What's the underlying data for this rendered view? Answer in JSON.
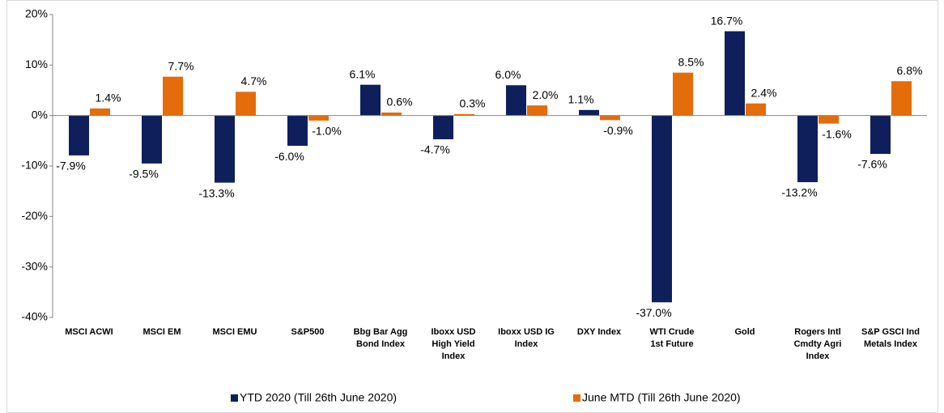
{
  "chart_data": {
    "type": "bar",
    "categories": [
      "MSCI ACWI",
      "MSCI EM",
      "MSCI EMU",
      "S&P500",
      "Bbg Bar Agg Bond Index",
      "Iboxx USD High Yield Index",
      "Iboxx USD IG Index",
      "DXY Index",
      "WTI Crude 1st Future",
      "Gold",
      "Rogers Intl Cmdty Agri Index",
      "S&P GSCI Ind Metals Index"
    ],
    "series": [
      {
        "name": "YTD 2020 (Till 26th June 2020)",
        "color": "#0e1f5b",
        "values": [
          -7.9,
          -9.5,
          -13.3,
          -6.0,
          6.1,
          -4.7,
          6.0,
          1.1,
          -37.0,
          16.7,
          -13.2,
          -7.6
        ],
        "value_labels": [
          "-7.9%",
          "-9.5%",
          "-13.3%",
          "-6.0%",
          "6.1%",
          "-4.7%",
          "6.0%",
          "1.1%",
          "-37.0%",
          "16.7%",
          "-13.2%",
          "-7.6%"
        ]
      },
      {
        "name": "June MTD (Till 26th June 2020)",
        "color": "#e46c0a",
        "values": [
          1.4,
          7.7,
          4.7,
          -1.0,
          0.6,
          0.3,
          2.0,
          -0.9,
          8.5,
          2.4,
          -1.6,
          6.8
        ],
        "value_labels": [
          "1.4%",
          "7.7%",
          "4.7%",
          "-1.0%",
          "0.6%",
          "0.3%",
          "2.0%",
          "-0.9%",
          "8.5%",
          "2.4%",
          "-1.6%",
          "6.8%"
        ]
      }
    ],
    "ylim": [
      -40,
      20
    ],
    "yticks": [
      {
        "value": -40,
        "label": "-40%"
      },
      {
        "value": -30,
        "label": "-30%"
      },
      {
        "value": -20,
        "label": "-20%"
      },
      {
        "value": -10,
        "label": "-10%"
      },
      {
        "value": 0,
        "label": "0%"
      },
      {
        "value": 10,
        "label": "10%"
      },
      {
        "value": 20,
        "label": "20%"
      }
    ],
    "legend": "bottom"
  }
}
